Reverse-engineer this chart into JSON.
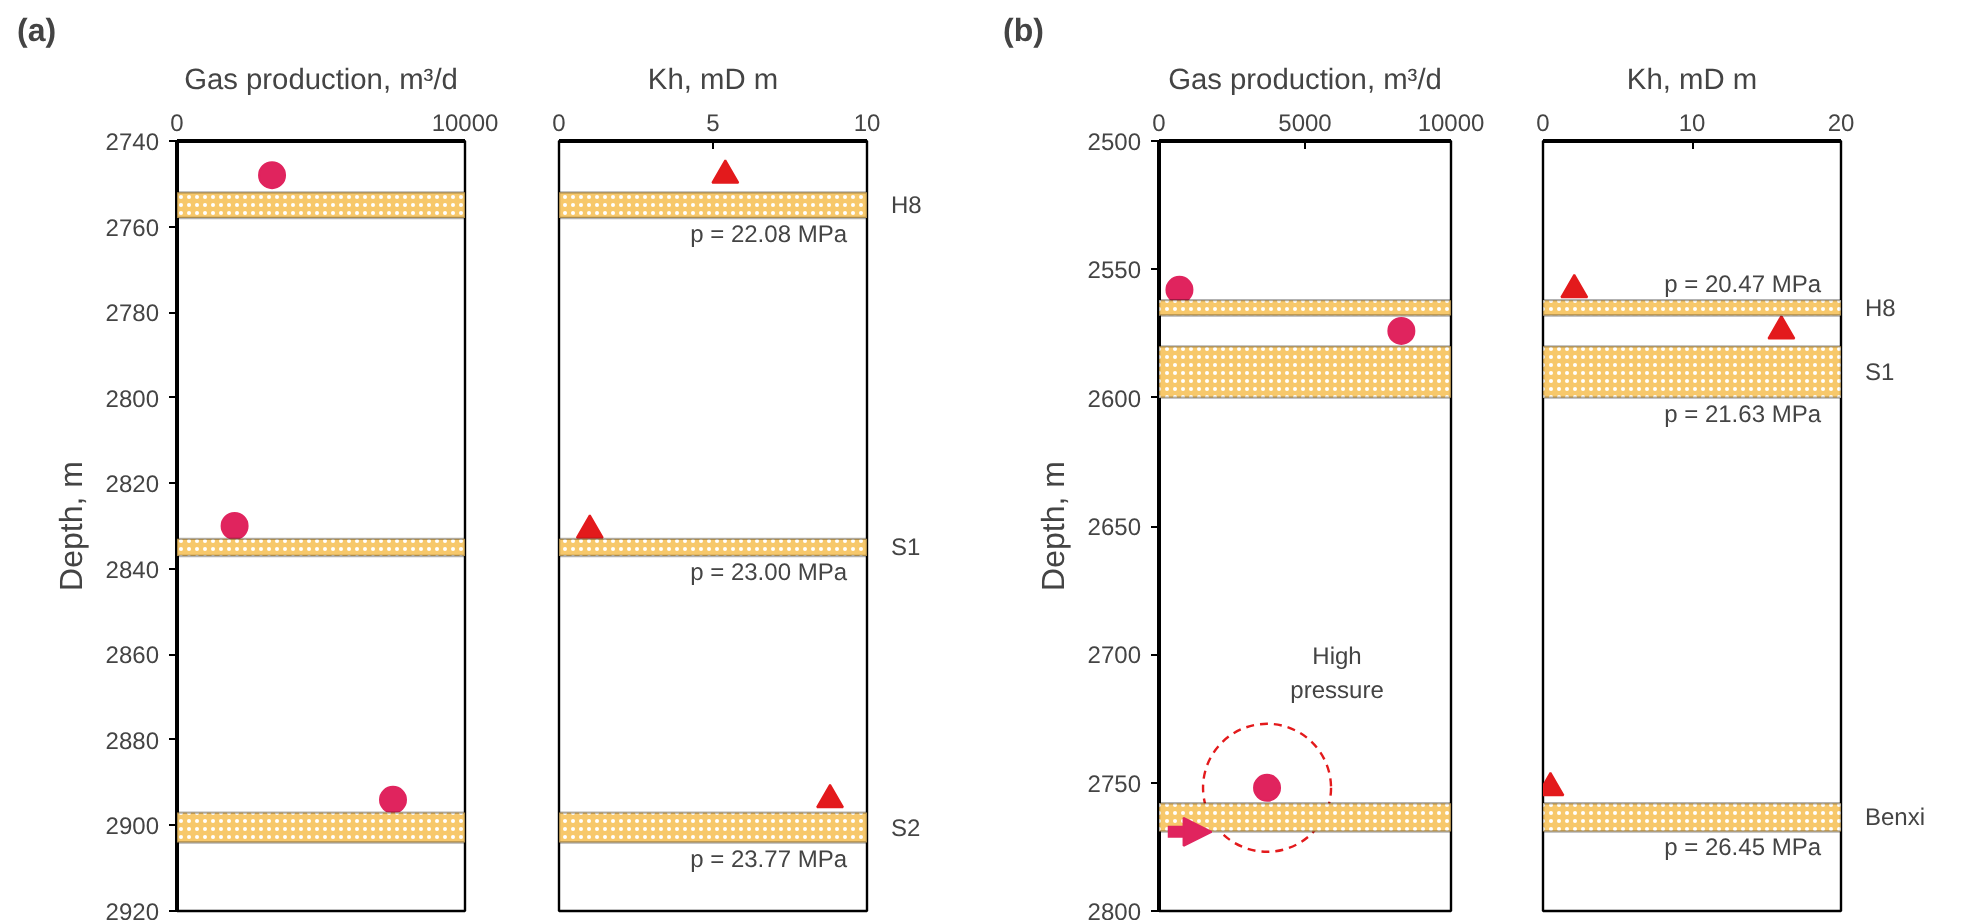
{
  "chart_data": [
    {
      "type": "scatter",
      "title": "(a)",
      "xlabel": "Gas production, m³/d",
      "ylabel": "Depth, m",
      "xlim": [
        0,
        10000
      ],
      "xticks": [
        0,
        10000
      ],
      "ylim": [
        2920,
        2740
      ],
      "yticks": [
        2740,
        2760,
        2780,
        2800,
        2820,
        2840,
        2860,
        2880,
        2900,
        2920
      ],
      "marker": "circle",
      "series": [
        {
          "color": "#e0245e",
          "x": [
            3300,
            2000,
            7500
          ],
          "values": [
            2748,
            2830,
            2894
          ]
        }
      ],
      "bands": [
        {
          "axis": "y",
          "from": 2752,
          "to": 2758,
          "color": "#f7c86b"
        },
        {
          "axis": "y",
          "from": 2833,
          "to": 2837,
          "color": "#f7c86b"
        },
        {
          "axis": "y",
          "from": 2897,
          "to": 2904,
          "color": "#f7c86b"
        }
      ]
    },
    {
      "type": "scatter",
      "xlabel": "Kh, mD m",
      "xlim": [
        0,
        10
      ],
      "xticks": [
        0,
        5,
        10
      ],
      "ylim": [
        2920,
        2740
      ],
      "yticks": [
        2740,
        2760,
        2780,
        2800,
        2820,
        2840,
        2860,
        2880,
        2900,
        2920
      ],
      "tick_labels": "x",
      "marker": "triangle",
      "series": [
        {
          "color": "#e31a1c",
          "x": [
            5.4,
            1.0,
            8.8
          ],
          "values": [
            2748,
            2831,
            2894
          ]
        }
      ],
      "bands": [
        {
          "axis": "y",
          "from": 2752,
          "to": 2758,
          "label": "H8",
          "color": "#f7c86b"
        },
        {
          "axis": "y",
          "from": 2833,
          "to": 2837,
          "label": "S1",
          "color": "#f7c86b"
        },
        {
          "axis": "y",
          "from": 2897,
          "to": 2904,
          "label": "S2",
          "color": "#f7c86b"
        }
      ],
      "annotations": [
        "p = 22.08 MPa",
        "p = 23.00 MPa",
        "p = 23.77 MPa"
      ]
    },
    {
      "type": "scatter",
      "title": "(b)",
      "xlabel": "Gas production, m³/d",
      "ylabel": "Depth, m",
      "xlim": [
        0,
        10000
      ],
      "xticks": [
        0,
        5000,
        10000
      ],
      "ylim": [
        2800,
        2500
      ],
      "yticks": [
        2500,
        2550,
        2600,
        2650,
        2700,
        2750,
        2800
      ],
      "marker": "circle",
      "series": [
        {
          "color": "#e0245e",
          "x": [
            700,
            8300,
            3700
          ],
          "values": [
            2558,
            2574,
            2752
          ]
        }
      ],
      "bands": [
        {
          "axis": "y",
          "from": 2562,
          "to": 2568,
          "color": "#f7c86b"
        },
        {
          "axis": "y",
          "from": 2580,
          "to": 2600,
          "color": "#f7c86b"
        },
        {
          "axis": "y",
          "from": 2758,
          "to": 2769,
          "color": "#f7c86b"
        }
      ],
      "annotations": [
        "High pressure"
      ]
    },
    {
      "type": "scatter",
      "xlabel": "Kh, mD m",
      "xlim": [
        0,
        20
      ],
      "xticks": [
        0,
        10,
        20
      ],
      "ylim": [
        2800,
        2500
      ],
      "yticks": [
        2500,
        2550,
        2600,
        2650,
        2700,
        2750,
        2800
      ],
      "tick_labels": "x",
      "marker": "triangle",
      "series": [
        {
          "color": "#e31a1c",
          "x": [
            2.1,
            16.0,
            0.5
          ],
          "values": [
            2558,
            2574,
            2752
          ]
        }
      ],
      "bands": [
        {
          "axis": "y",
          "from": 2562,
          "to": 2568,
          "label": "H8",
          "color": "#f7c86b"
        },
        {
          "axis": "y",
          "from": 2580,
          "to": 2600,
          "label": "S1",
          "color": "#f7c86b"
        },
        {
          "axis": "y",
          "from": 2758,
          "to": 2769,
          "label": "Benxi",
          "color": "#f7c86b"
        }
      ],
      "annotations": [
        "p = 20.47 MPa",
        "p = 21.63 MPa",
        "p = 26.45 MPa"
      ]
    }
  ]
}
